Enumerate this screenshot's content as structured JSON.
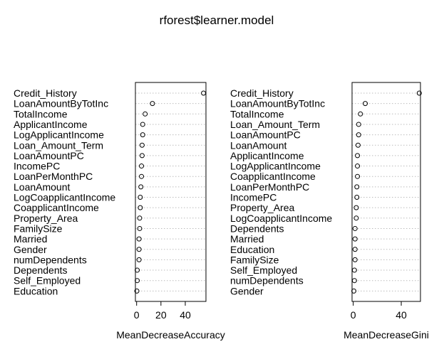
{
  "title": "rforest$learner.model",
  "chart_data": [
    {
      "type": "dotchart",
      "xlabel": "MeanDecreaseAccuracy",
      "xlim": [
        -1,
        57
      ],
      "xticks": [
        0,
        20,
        40
      ],
      "grid": true,
      "categories": [
        "Credit_History",
        "LoanAmountByTotInc",
        "TotalIncome",
        "ApplicantIncome",
        "LogApplicantIncome",
        "Loan_Amount_Term",
        "LoanAmountPC",
        "IncomePC",
        "LoanPerMonthPC",
        "LoanAmount",
        "LogCoapplicantIncome",
        "CoapplicantIncome",
        "Property_Area",
        "FamilySize",
        "Married",
        "Gender",
        "numDependents",
        "Dependents",
        "Self_Employed",
        "Education"
      ],
      "values": [
        55,
        13,
        7,
        5,
        5,
        4.5,
        4.5,
        4,
        4,
        3.5,
        3,
        3,
        2.5,
        2.5,
        2,
        2,
        2,
        0.5,
        0.5,
        0.2
      ]
    },
    {
      "type": "dotchart",
      "xlabel": "MeanDecreaseGini",
      "xlim": [
        -1,
        56
      ],
      "xticks": [
        0,
        40
      ],
      "grid": true,
      "categories": [
        "Credit_History",
        "LoanAmountByTotInc",
        "TotalIncome",
        "Loan_Amount_Term",
        "LoanAmountPC",
        "LoanAmount",
        "ApplicantIncome",
        "LogApplicantIncome",
        "CoapplicantIncome",
        "LoanPerMonthPC",
        "IncomePC",
        "Property_Area",
        "LogCoapplicantIncome",
        "Dependents",
        "Married",
        "Education",
        "FamilySize",
        "Self_Employed",
        "numDependents",
        "Gender"
      ],
      "values": [
        55,
        10,
        6,
        4.5,
        4.5,
        4,
        3.5,
        3.5,
        3.5,
        3,
        3,
        2.5,
        2.5,
        1.5,
        1.5,
        1.5,
        1.5,
        1,
        1,
        0.5
      ]
    }
  ]
}
